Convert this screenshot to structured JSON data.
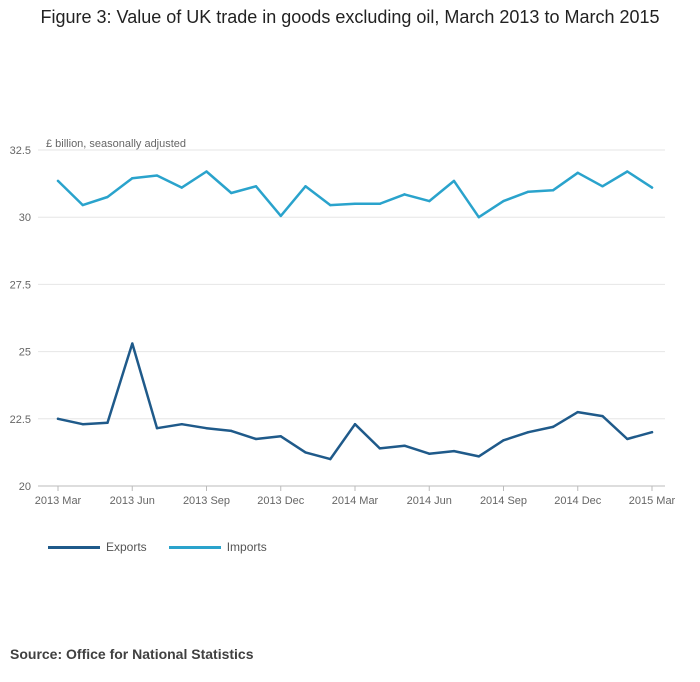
{
  "chart_data": {
    "type": "line",
    "title": "Figure 3: Value of UK trade in goods excluding oil, March 2013 to March 2015",
    "ylabel": "£ billion, seasonally adjusted",
    "xlabel": "",
    "ylim": [
      20,
      32.5
    ],
    "yticks": [
      20,
      22.5,
      25,
      27.5,
      30,
      32.5
    ],
    "ytick_labels": [
      "20",
      "22.5",
      "25",
      "27.5",
      "30",
      "32.5"
    ],
    "x_tick_labels": [
      "2013 Mar",
      "2013 Jun",
      "2013 Sep",
      "2013 Dec",
      "2014 Mar",
      "2014 Jun",
      "2014 Sep",
      "2014 Dec",
      "2015 Mar"
    ],
    "x_tick_indices": [
      0,
      3,
      6,
      9,
      12,
      15,
      18,
      21,
      24
    ],
    "grid": true,
    "legend_position": "bottom-left",
    "series": [
      {
        "name": "Exports",
        "color": "#1f5a8a",
        "values": [
          22.5,
          22.3,
          22.35,
          25.3,
          22.15,
          22.3,
          22.15,
          22.05,
          21.75,
          21.85,
          21.25,
          21.0,
          22.3,
          21.4,
          21.5,
          21.2,
          21.3,
          21.1,
          21.7,
          22.0,
          22.2,
          22.75,
          22.6,
          21.75,
          22.0
        ]
      },
      {
        "name": "Imports",
        "color": "#2aa3cc",
        "values": [
          31.35,
          30.45,
          30.75,
          31.45,
          31.55,
          31.1,
          31.7,
          30.9,
          31.15,
          30.05,
          31.15,
          30.45,
          30.5,
          30.5,
          30.85,
          30.6,
          31.35,
          30.0,
          30.6,
          30.95,
          31.0,
          31.65,
          31.15,
          31.7,
          31.1
        ]
      }
    ]
  },
  "source": "Source: Office for National Statistics"
}
